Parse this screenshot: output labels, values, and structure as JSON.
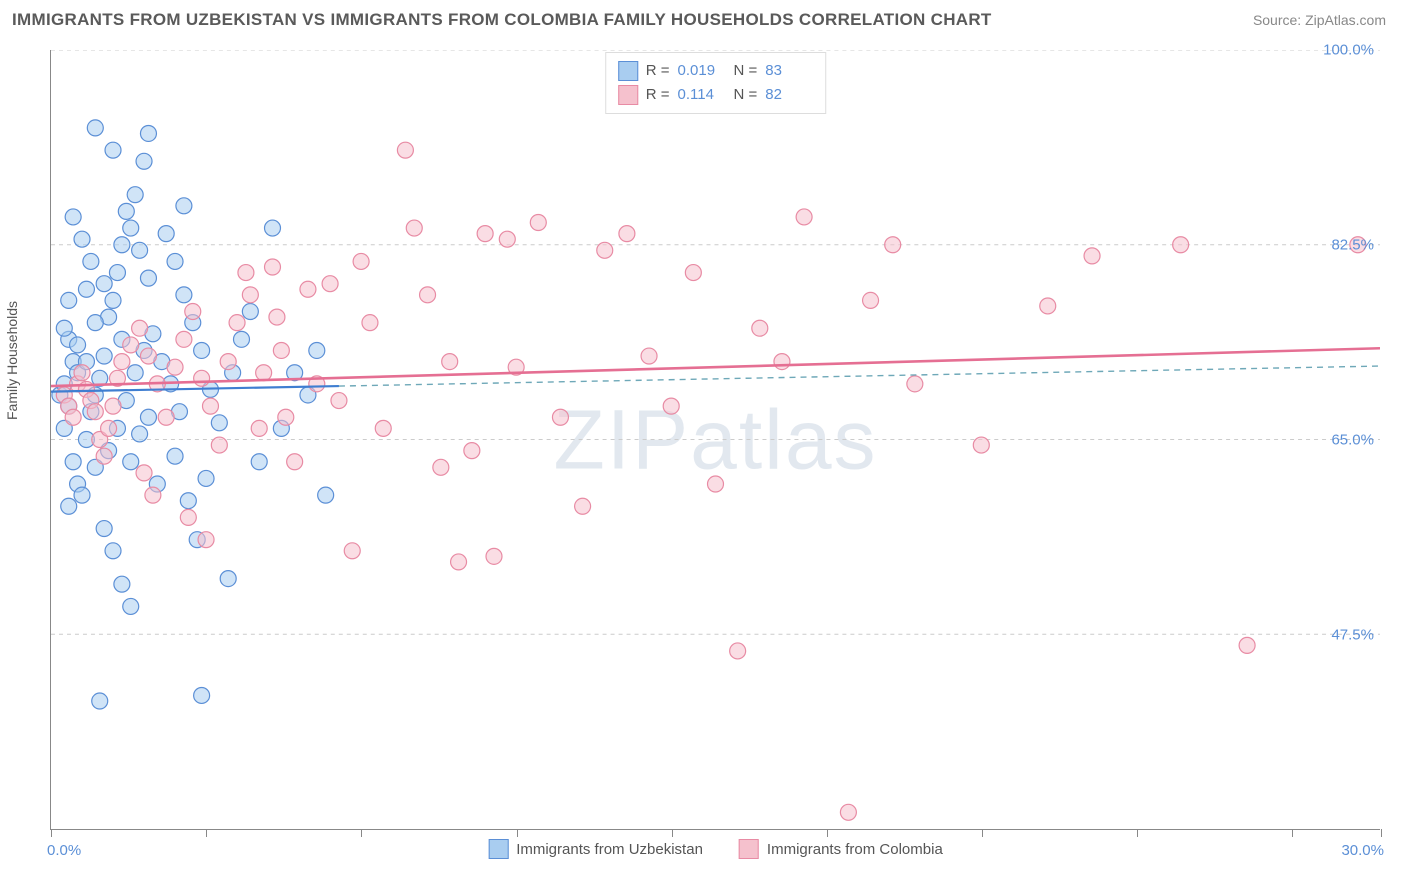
{
  "header": {
    "title": "IMMIGRANTS FROM UZBEKISTAN VS IMMIGRANTS FROM COLOMBIA FAMILY HOUSEHOLDS CORRELATION CHART",
    "source": "Source: ZipAtlas.com"
  },
  "watermark": "ZIPatlas",
  "chart": {
    "type": "scatter",
    "ylabel": "Family Households",
    "xlim": [
      0,
      30
    ],
    "ylim": [
      30,
      100
    ],
    "yticks": [
      47.5,
      65.0,
      82.5,
      100.0
    ],
    "ytick_labels": [
      "47.5%",
      "65.0%",
      "82.5%",
      "100.0%"
    ],
    "xticks": [
      0,
      3.5,
      7,
      10.5,
      14,
      17.5,
      21,
      24.5,
      28,
      30
    ],
    "x_start_label": "0.0%",
    "x_end_label": "30.0%",
    "background_color": "#ffffff",
    "grid_color": "#cccccc",
    "axis_color": "#888888",
    "marker_radius": 8,
    "marker_stroke_width": 1.2,
    "series": [
      {
        "name": "Immigrants from Uzbekistan",
        "fill": "#a9cdf0",
        "stroke": "#5b8fd6",
        "fill_opacity": 0.55,
        "R": "0.019",
        "N": "83",
        "trend": {
          "x1": 0,
          "y1": 69.3,
          "x2": 6.5,
          "y2": 69.8,
          "color": "#3f7ed1",
          "width": 2.2,
          "dash": "none"
        },
        "trend_ext": {
          "x1": 6.5,
          "y1": 69.8,
          "x2": 30,
          "y2": 71.6,
          "color": "#6ea8b8",
          "width": 1.4,
          "dash": "6,5"
        },
        "points": [
          [
            0.2,
            69
          ],
          [
            0.3,
            70
          ],
          [
            0.4,
            68
          ],
          [
            0.3,
            66
          ],
          [
            0.5,
            72
          ],
          [
            0.6,
            71
          ],
          [
            0.4,
            74
          ],
          [
            0.3,
            75
          ],
          [
            0.5,
            63
          ],
          [
            0.6,
            61
          ],
          [
            0.7,
            60
          ],
          [
            0.4,
            59
          ],
          [
            0.8,
            65
          ],
          [
            0.9,
            67.5
          ],
          [
            1.0,
            69
          ],
          [
            1.1,
            70.5
          ],
          [
            1.2,
            72.5
          ],
          [
            1.3,
            76
          ],
          [
            1.4,
            77.5
          ],
          [
            1.5,
            80
          ],
          [
            1.6,
            82.5
          ],
          [
            1.8,
            84
          ],
          [
            2.0,
            82
          ],
          [
            2.2,
            79.5
          ],
          [
            1.0,
            93
          ],
          [
            2.2,
            92.5
          ],
          [
            1.2,
            57
          ],
          [
            1.4,
            55
          ],
          [
            1.6,
            52
          ],
          [
            1.8,
            50
          ],
          [
            1.1,
            41.5
          ],
          [
            3.4,
            42
          ],
          [
            0.4,
            77.5
          ],
          [
            0.8,
            78.5
          ],
          [
            1.0,
            62.5
          ],
          [
            1.3,
            64
          ],
          [
            1.5,
            66
          ],
          [
            1.7,
            68.5
          ],
          [
            1.9,
            71
          ],
          [
            2.1,
            73
          ],
          [
            2.3,
            74.5
          ],
          [
            2.5,
            72
          ],
          [
            2.7,
            70
          ],
          [
            2.9,
            67.5
          ],
          [
            3.0,
            78
          ],
          [
            3.2,
            75.5
          ],
          [
            3.4,
            73
          ],
          [
            3.6,
            69.5
          ],
          [
            3.8,
            66.5
          ],
          [
            4.0,
            52.5
          ],
          [
            4.1,
            71
          ],
          [
            4.3,
            74
          ],
          [
            4.5,
            76.5
          ],
          [
            4.7,
            63
          ],
          [
            5.0,
            84
          ],
          [
            5.2,
            66
          ],
          [
            5.5,
            71
          ],
          [
            5.8,
            69
          ],
          [
            6.0,
            73
          ],
          [
            6.2,
            60
          ],
          [
            2.8,
            63.5
          ],
          [
            3.1,
            59.5
          ],
          [
            3.3,
            56
          ],
          [
            3.5,
            61.5
          ],
          [
            2.6,
            83.5
          ],
          [
            2.8,
            81
          ],
          [
            3.0,
            86
          ],
          [
            1.7,
            85.5
          ],
          [
            1.9,
            87
          ],
          [
            2.1,
            90
          ],
          [
            0.9,
            81
          ],
          [
            0.7,
            83
          ],
          [
            0.5,
            85
          ],
          [
            1.4,
            91
          ],
          [
            1.6,
            74
          ],
          [
            1.8,
            63
          ],
          [
            2.0,
            65.5
          ],
          [
            2.2,
            67
          ],
          [
            2.4,
            61
          ],
          [
            0.6,
            73.5
          ],
          [
            0.8,
            72
          ],
          [
            1.0,
            75.5
          ],
          [
            1.2,
            79
          ]
        ]
      },
      {
        "name": "Immigrants from Colombia",
        "fill": "#f5c1cd",
        "stroke": "#e88ba4",
        "fill_opacity": 0.55,
        "R": "0.114",
        "N": "82",
        "trend": {
          "x1": 0,
          "y1": 69.8,
          "x2": 30,
          "y2": 73.2,
          "color": "#e56f93",
          "width": 2.6,
          "dash": "none"
        },
        "points": [
          [
            0.3,
            69
          ],
          [
            0.4,
            68
          ],
          [
            0.5,
            67
          ],
          [
            0.6,
            70
          ],
          [
            0.7,
            71
          ],
          [
            0.8,
            69.5
          ],
          [
            0.9,
            68.5
          ],
          [
            1.0,
            67.5
          ],
          [
            1.1,
            65
          ],
          [
            1.2,
            63.5
          ],
          [
            1.3,
            66
          ],
          [
            1.4,
            68
          ],
          [
            1.5,
            70.5
          ],
          [
            1.6,
            72
          ],
          [
            1.8,
            73.5
          ],
          [
            2.0,
            75
          ],
          [
            2.2,
            72.5
          ],
          [
            2.4,
            70
          ],
          [
            2.6,
            67
          ],
          [
            2.8,
            71.5
          ],
          [
            3.0,
            74
          ],
          [
            3.2,
            76.5
          ],
          [
            3.4,
            70.5
          ],
          [
            3.6,
            68
          ],
          [
            3.8,
            64.5
          ],
          [
            4.0,
            72
          ],
          [
            4.2,
            75.5
          ],
          [
            4.5,
            78
          ],
          [
            4.8,
            71
          ],
          [
            5.0,
            80.5
          ],
          [
            5.2,
            73
          ],
          [
            5.5,
            63
          ],
          [
            5.8,
            78.5
          ],
          [
            6.0,
            70
          ],
          [
            6.5,
            68.5
          ],
          [
            7.0,
            81
          ],
          [
            7.5,
            66
          ],
          [
            8.0,
            91
          ],
          [
            8.2,
            84
          ],
          [
            8.5,
            78
          ],
          [
            8.8,
            62.5
          ],
          [
            9.0,
            72
          ],
          [
            9.2,
            54
          ],
          [
            9.5,
            64
          ],
          [
            9.8,
            83.5
          ],
          [
            10.0,
            54.5
          ],
          [
            10.5,
            71.5
          ],
          [
            11.0,
            84.5
          ],
          [
            11.5,
            67
          ],
          [
            12.0,
            59
          ],
          [
            12.5,
            82
          ],
          [
            13.0,
            83.5
          ],
          [
            13.5,
            72.5
          ],
          [
            14.0,
            68
          ],
          [
            14.5,
            80
          ],
          [
            15.0,
            61
          ],
          [
            15.5,
            46
          ],
          [
            16.0,
            75
          ],
          [
            16.5,
            72
          ],
          [
            17.0,
            85
          ],
          [
            18.0,
            31.5
          ],
          [
            18.5,
            77.5
          ],
          [
            19.0,
            82.5
          ],
          [
            19.5,
            70
          ],
          [
            21.0,
            64.5
          ],
          [
            22.5,
            77
          ],
          [
            23.5,
            81.5
          ],
          [
            25.5,
            82.5
          ],
          [
            27.0,
            46.5
          ],
          [
            29.5,
            82.5
          ],
          [
            4.4,
            80
          ],
          [
            5.3,
            67
          ],
          [
            6.3,
            79
          ],
          [
            7.2,
            75.5
          ],
          [
            2.1,
            62
          ],
          [
            2.3,
            60
          ],
          [
            3.1,
            58
          ],
          [
            3.5,
            56
          ],
          [
            4.7,
            66
          ],
          [
            5.1,
            76
          ],
          [
            6.8,
            55
          ],
          [
            10.3,
            83
          ]
        ]
      }
    ],
    "legend_bottom": [
      {
        "label": "Immigrants from Uzbekistan",
        "fill": "#a9cdf0",
        "stroke": "#5b8fd6"
      },
      {
        "label": "Immigrants from Colombia",
        "fill": "#f5c1cd",
        "stroke": "#e88ba4"
      }
    ]
  }
}
